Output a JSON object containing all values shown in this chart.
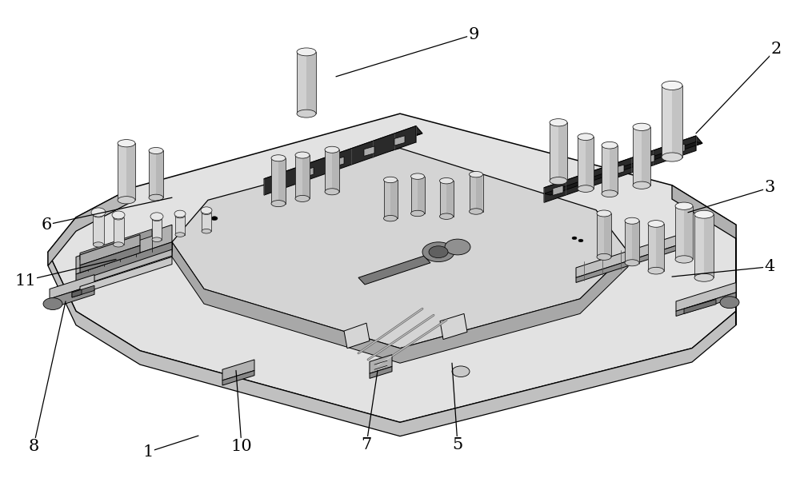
{
  "background_color": "#ffffff",
  "figure_width": 10.0,
  "figure_height": 6.18,
  "dpi": 100,
  "line_color": "#000000",
  "text_fontsize": 15,
  "text_color": "#000000",
  "annotations": [
    {
      "label": "1",
      "ptr": [
        0.248,
        0.118
      ],
      "txt": [
        0.185,
        0.085
      ]
    },
    {
      "label": "2",
      "ptr": [
        0.87,
        0.73
      ],
      "txt": [
        0.97,
        0.9
      ]
    },
    {
      "label": "3",
      "ptr": [
        0.86,
        0.57
      ],
      "txt": [
        0.962,
        0.62
      ]
    },
    {
      "label": "4",
      "ptr": [
        0.84,
        0.44
      ],
      "txt": [
        0.962,
        0.46
      ]
    },
    {
      "label": "5",
      "ptr": [
        0.565,
        0.265
      ],
      "txt": [
        0.572,
        0.1
      ]
    },
    {
      "label": "6",
      "ptr": [
        0.215,
        0.6
      ],
      "txt": [
        0.058,
        0.545
      ]
    },
    {
      "label": "7",
      "ptr": [
        0.472,
        0.25
      ],
      "txt": [
        0.458,
        0.1
      ]
    },
    {
      "label": "8",
      "ptr": [
        0.082,
        0.39
      ],
      "txt": [
        0.042,
        0.097
      ]
    },
    {
      "label": "9",
      "ptr": [
        0.42,
        0.845
      ],
      "txt": [
        0.592,
        0.93
      ]
    },
    {
      "label": "10",
      "ptr": [
        0.295,
        0.25
      ],
      "txt": [
        0.302,
        0.097
      ]
    },
    {
      "label": "11",
      "ptr": [
        0.145,
        0.475
      ],
      "txt": [
        0.032,
        0.432
      ]
    }
  ]
}
